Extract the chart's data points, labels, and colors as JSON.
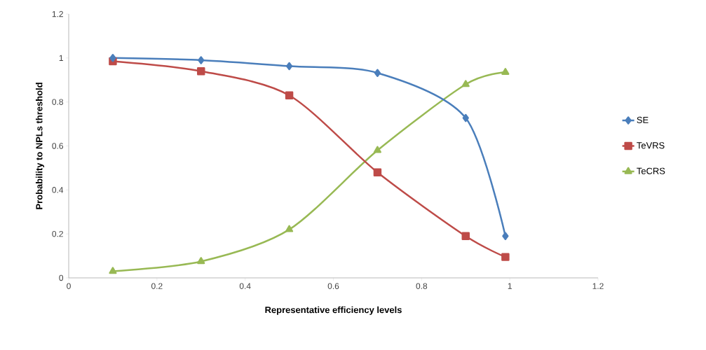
{
  "chart_data": {
    "type": "line",
    "xlabel": "Representative efficiency levels",
    "ylabel": "Probability to NPLs threshold",
    "x": [
      0.1,
      0.3,
      0.5,
      0.7,
      0.9,
      0.99
    ],
    "series": [
      {
        "name": "SE",
        "color": "#4a7ebb",
        "marker": "diamond",
        "values": [
          1.0,
          0.99,
          0.963,
          0.932,
          0.727,
          0.19
        ]
      },
      {
        "name": "TeVRS",
        "color": "#be4b48",
        "marker": "square",
        "values": [
          0.985,
          0.94,
          0.83,
          0.48,
          0.19,
          0.095
        ]
      },
      {
        "name": "TeCRS",
        "color": "#98b954",
        "marker": "triangle",
        "values": [
          0.03,
          0.075,
          0.22,
          0.58,
          0.88,
          0.935
        ]
      }
    ],
    "xlim": [
      0,
      1.2
    ],
    "ylim": [
      0,
      1.2
    ],
    "xticks": [
      0,
      0.2,
      0.4,
      0.6,
      0.8,
      1,
      1.2
    ],
    "yticks": [
      0,
      0.2,
      0.4,
      0.6,
      0.8,
      1,
      1.2
    ],
    "legend": "right",
    "line_style": "solid"
  }
}
